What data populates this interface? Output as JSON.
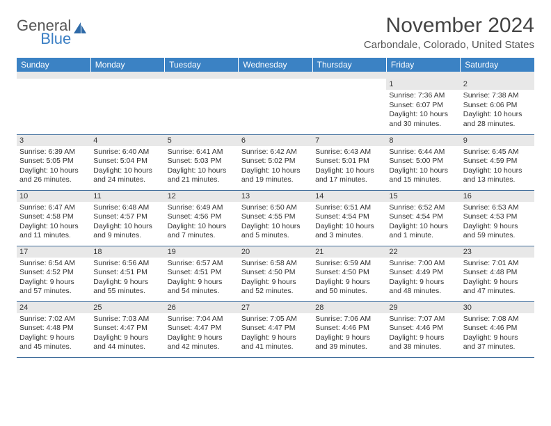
{
  "logo": {
    "word1": "General",
    "word2": "Blue"
  },
  "title": "November 2024",
  "location": "Carbondale, Colorado, United States",
  "colors": {
    "header_bg": "#3b82c4",
    "header_text": "#ffffff",
    "daynum_bg": "#e8e8e8",
    "border": "#3b6a99",
    "logo_blue": "#3b7fc4",
    "text": "#333333"
  },
  "weekdays": [
    "Sunday",
    "Monday",
    "Tuesday",
    "Wednesday",
    "Thursday",
    "Friday",
    "Saturday"
  ],
  "weeks": [
    [
      null,
      null,
      null,
      null,
      null,
      {
        "n": "1",
        "sr": "Sunrise: 7:36 AM",
        "ss": "Sunset: 6:07 PM",
        "dl": "Daylight: 10 hours and 30 minutes."
      },
      {
        "n": "2",
        "sr": "Sunrise: 7:38 AM",
        "ss": "Sunset: 6:06 PM",
        "dl": "Daylight: 10 hours and 28 minutes."
      }
    ],
    [
      {
        "n": "3",
        "sr": "Sunrise: 6:39 AM",
        "ss": "Sunset: 5:05 PM",
        "dl": "Daylight: 10 hours and 26 minutes."
      },
      {
        "n": "4",
        "sr": "Sunrise: 6:40 AM",
        "ss": "Sunset: 5:04 PM",
        "dl": "Daylight: 10 hours and 24 minutes."
      },
      {
        "n": "5",
        "sr": "Sunrise: 6:41 AM",
        "ss": "Sunset: 5:03 PM",
        "dl": "Daylight: 10 hours and 21 minutes."
      },
      {
        "n": "6",
        "sr": "Sunrise: 6:42 AM",
        "ss": "Sunset: 5:02 PM",
        "dl": "Daylight: 10 hours and 19 minutes."
      },
      {
        "n": "7",
        "sr": "Sunrise: 6:43 AM",
        "ss": "Sunset: 5:01 PM",
        "dl": "Daylight: 10 hours and 17 minutes."
      },
      {
        "n": "8",
        "sr": "Sunrise: 6:44 AM",
        "ss": "Sunset: 5:00 PM",
        "dl": "Daylight: 10 hours and 15 minutes."
      },
      {
        "n": "9",
        "sr": "Sunrise: 6:45 AM",
        "ss": "Sunset: 4:59 PM",
        "dl": "Daylight: 10 hours and 13 minutes."
      }
    ],
    [
      {
        "n": "10",
        "sr": "Sunrise: 6:47 AM",
        "ss": "Sunset: 4:58 PM",
        "dl": "Daylight: 10 hours and 11 minutes."
      },
      {
        "n": "11",
        "sr": "Sunrise: 6:48 AM",
        "ss": "Sunset: 4:57 PM",
        "dl": "Daylight: 10 hours and 9 minutes."
      },
      {
        "n": "12",
        "sr": "Sunrise: 6:49 AM",
        "ss": "Sunset: 4:56 PM",
        "dl": "Daylight: 10 hours and 7 minutes."
      },
      {
        "n": "13",
        "sr": "Sunrise: 6:50 AM",
        "ss": "Sunset: 4:55 PM",
        "dl": "Daylight: 10 hours and 5 minutes."
      },
      {
        "n": "14",
        "sr": "Sunrise: 6:51 AM",
        "ss": "Sunset: 4:54 PM",
        "dl": "Daylight: 10 hours and 3 minutes."
      },
      {
        "n": "15",
        "sr": "Sunrise: 6:52 AM",
        "ss": "Sunset: 4:54 PM",
        "dl": "Daylight: 10 hours and 1 minute."
      },
      {
        "n": "16",
        "sr": "Sunrise: 6:53 AM",
        "ss": "Sunset: 4:53 PM",
        "dl": "Daylight: 9 hours and 59 minutes."
      }
    ],
    [
      {
        "n": "17",
        "sr": "Sunrise: 6:54 AM",
        "ss": "Sunset: 4:52 PM",
        "dl": "Daylight: 9 hours and 57 minutes."
      },
      {
        "n": "18",
        "sr": "Sunrise: 6:56 AM",
        "ss": "Sunset: 4:51 PM",
        "dl": "Daylight: 9 hours and 55 minutes."
      },
      {
        "n": "19",
        "sr": "Sunrise: 6:57 AM",
        "ss": "Sunset: 4:51 PM",
        "dl": "Daylight: 9 hours and 54 minutes."
      },
      {
        "n": "20",
        "sr": "Sunrise: 6:58 AM",
        "ss": "Sunset: 4:50 PM",
        "dl": "Daylight: 9 hours and 52 minutes."
      },
      {
        "n": "21",
        "sr": "Sunrise: 6:59 AM",
        "ss": "Sunset: 4:50 PM",
        "dl": "Daylight: 9 hours and 50 minutes."
      },
      {
        "n": "22",
        "sr": "Sunrise: 7:00 AM",
        "ss": "Sunset: 4:49 PM",
        "dl": "Daylight: 9 hours and 48 minutes."
      },
      {
        "n": "23",
        "sr": "Sunrise: 7:01 AM",
        "ss": "Sunset: 4:48 PM",
        "dl": "Daylight: 9 hours and 47 minutes."
      }
    ],
    [
      {
        "n": "24",
        "sr": "Sunrise: 7:02 AM",
        "ss": "Sunset: 4:48 PM",
        "dl": "Daylight: 9 hours and 45 minutes."
      },
      {
        "n": "25",
        "sr": "Sunrise: 7:03 AM",
        "ss": "Sunset: 4:47 PM",
        "dl": "Daylight: 9 hours and 44 minutes."
      },
      {
        "n": "26",
        "sr": "Sunrise: 7:04 AM",
        "ss": "Sunset: 4:47 PM",
        "dl": "Daylight: 9 hours and 42 minutes."
      },
      {
        "n": "27",
        "sr": "Sunrise: 7:05 AM",
        "ss": "Sunset: 4:47 PM",
        "dl": "Daylight: 9 hours and 41 minutes."
      },
      {
        "n": "28",
        "sr": "Sunrise: 7:06 AM",
        "ss": "Sunset: 4:46 PM",
        "dl": "Daylight: 9 hours and 39 minutes."
      },
      {
        "n": "29",
        "sr": "Sunrise: 7:07 AM",
        "ss": "Sunset: 4:46 PM",
        "dl": "Daylight: 9 hours and 38 minutes."
      },
      {
        "n": "30",
        "sr": "Sunrise: 7:08 AM",
        "ss": "Sunset: 4:46 PM",
        "dl": "Daylight: 9 hours and 37 minutes."
      }
    ]
  ]
}
